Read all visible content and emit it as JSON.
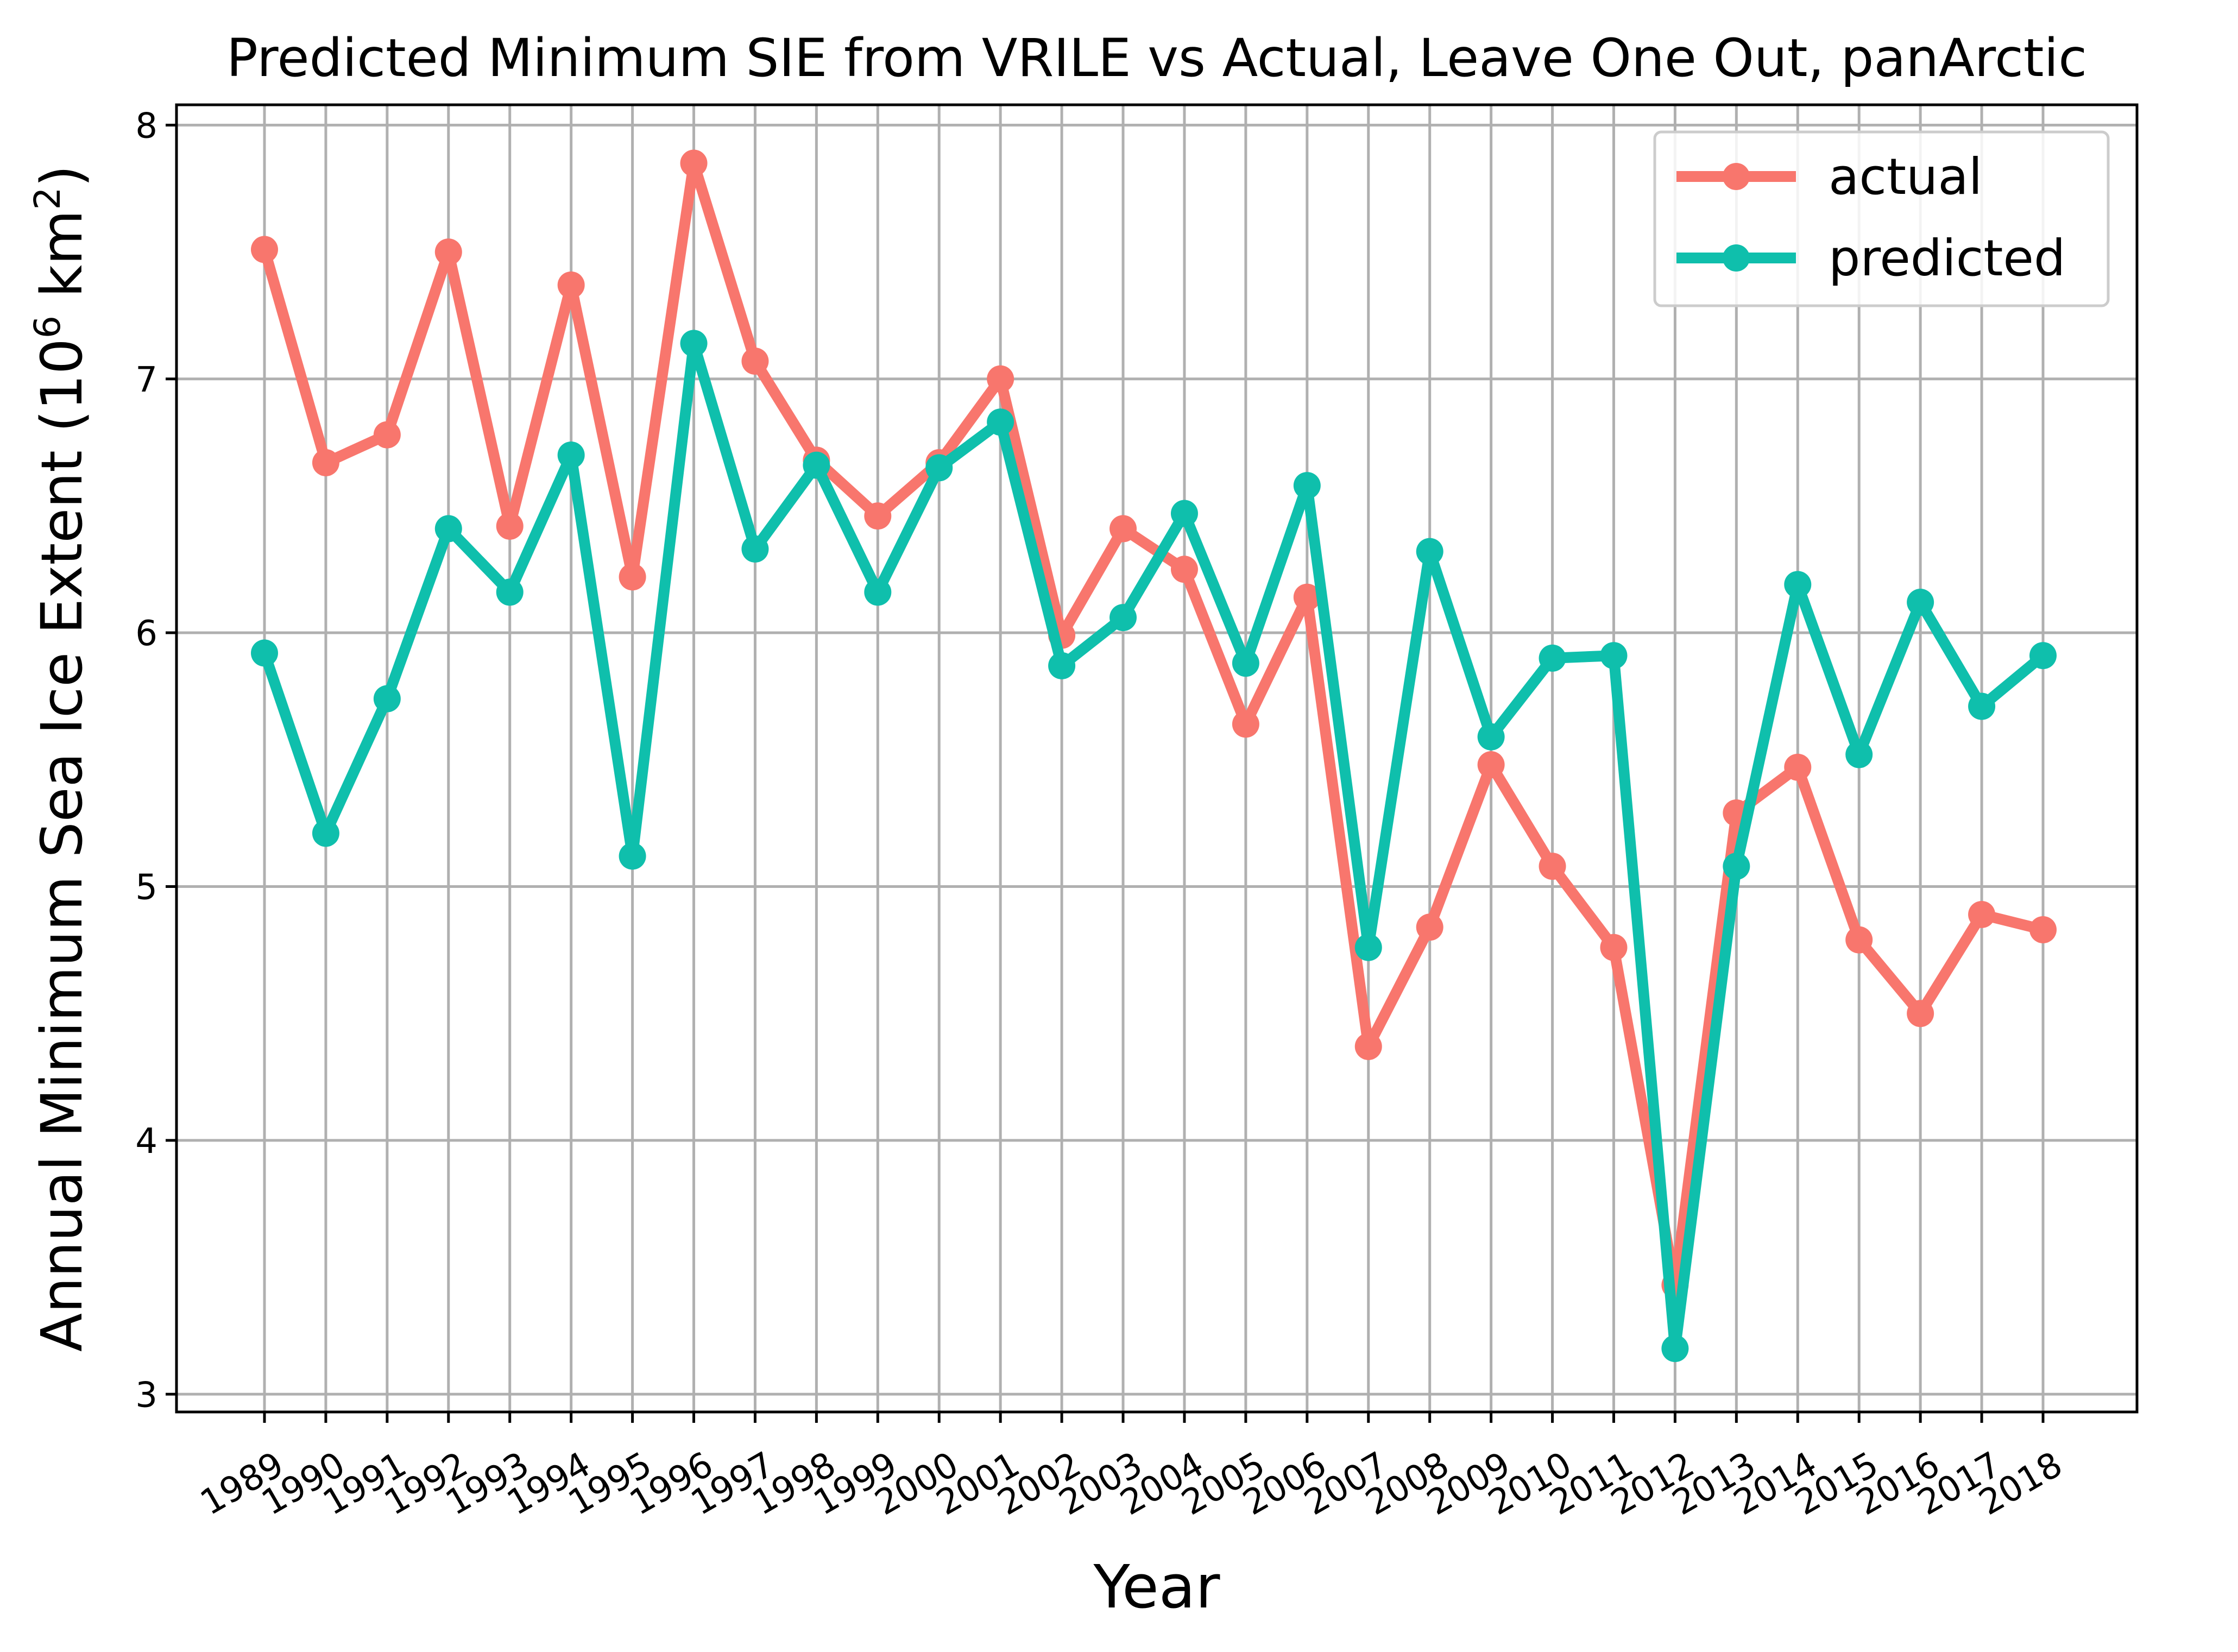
{
  "chart_data": {
    "type": "line",
    "title": "Predicted Minimum SIE from VRILE vs Actual, Leave One Out, panArctic",
    "xlabel": "Year",
    "ylabel_main": "Annual Minimum Sea Ice Extent (10",
    "ylabel_sup1": "6",
    "ylabel_mid": " km",
    "ylabel_sup2": "2",
    "ylabel_end": ")",
    "x": [
      "1989",
      "1990",
      "1991",
      "1992",
      "1993",
      "1994",
      "1995",
      "1996",
      "1997",
      "1998",
      "1999",
      "2000",
      "2001",
      "2002",
      "2003",
      "2004",
      "2005",
      "2006",
      "2007",
      "2008",
      "2009",
      "2010",
      "2011",
      "2012",
      "2013",
      "2014",
      "2015",
      "2016",
      "2017",
      "2018"
    ],
    "yticks": [
      "3",
      "4",
      "5",
      "6",
      "7",
      "8"
    ],
    "ylim": [
      2.93,
      8.08
    ],
    "grid": true,
    "legend_position": "top-right",
    "series": [
      {
        "name": "actual",
        "color": "#f8766d",
        "values": [
          7.51,
          6.67,
          6.78,
          7.5,
          6.42,
          7.37,
          6.22,
          7.85,
          7.07,
          6.68,
          6.46,
          6.67,
          7.0,
          5.99,
          6.41,
          6.25,
          5.64,
          6.14,
          4.37,
          4.84,
          5.48,
          5.08,
          4.76,
          3.43,
          5.29,
          5.47,
          4.79,
          4.5,
          4.89,
          4.83
        ]
      },
      {
        "name": "predicted",
        "color": "#0fbfac",
        "values": [
          5.92,
          5.21,
          5.74,
          6.41,
          6.16,
          6.7,
          5.12,
          7.14,
          6.33,
          6.66,
          6.16,
          6.65,
          6.83,
          5.87,
          6.06,
          6.47,
          5.88,
          6.58,
          4.76,
          6.32,
          5.59,
          5.9,
          5.91,
          3.18,
          5.08,
          6.19,
          5.52,
          6.12,
          5.71,
          5.91
        ]
      }
    ]
  }
}
